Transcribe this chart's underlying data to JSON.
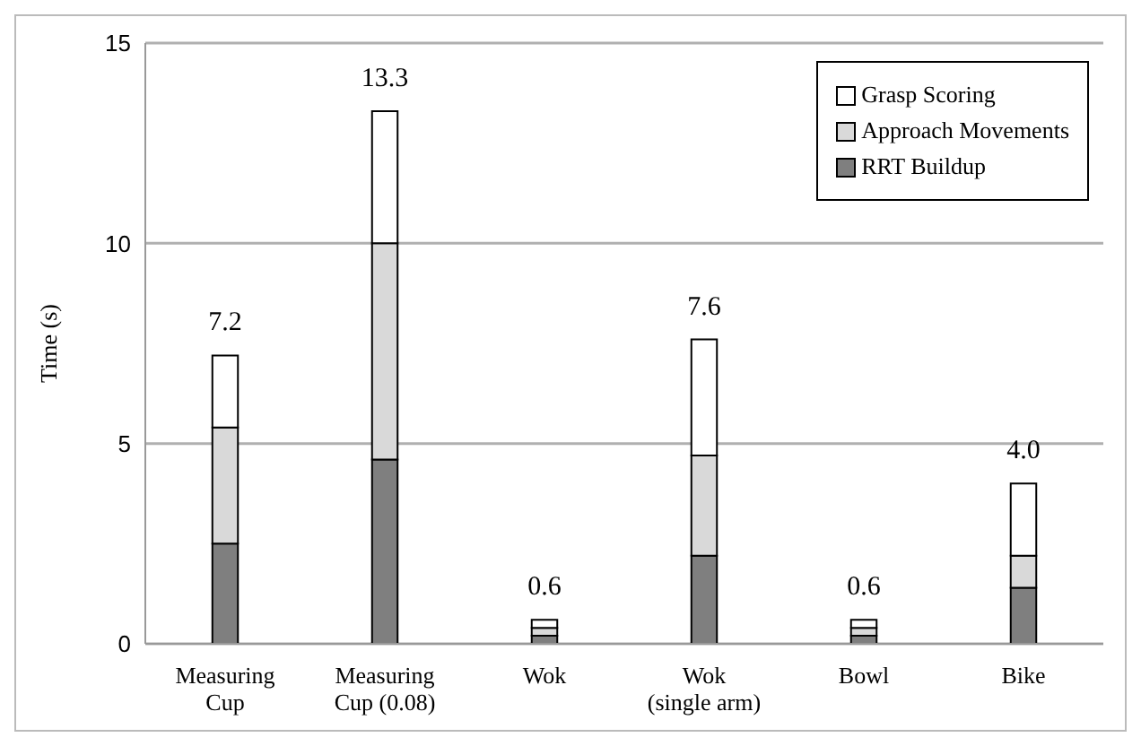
{
  "chart_data": {
    "type": "bar",
    "stacked": true,
    "ylabel": "Time  (s)",
    "categories": [
      "Measuring Cup",
      "Measuring Cup (0.08)",
      "Wok",
      "Wok (single arm)",
      "Bowl",
      "Bike"
    ],
    "series": [
      {
        "name": "RRT Buildup",
        "color": "#7f7f7f",
        "values": [
          2.5,
          4.6,
          0.2,
          2.2,
          0.2,
          1.4
        ]
      },
      {
        "name": "Approach Movements",
        "color": "#d9d9d9",
        "values": [
          2.9,
          5.4,
          0.2,
          2.5,
          0.2,
          0.8
        ]
      },
      {
        "name": "Grasp Scoring",
        "color": "#ffffff",
        "values": [
          1.8,
          3.3,
          0.2,
          2.9,
          0.2,
          1.8
        ]
      }
    ],
    "totals": [
      "7.2",
      "13.3",
      "0.6",
      "7.6",
      "0.6",
      "4.0"
    ],
    "ylim": [
      0,
      15
    ],
    "yticks": [
      0,
      5,
      10,
      15
    ],
    "grid": "y",
    "legend": "top right"
  }
}
